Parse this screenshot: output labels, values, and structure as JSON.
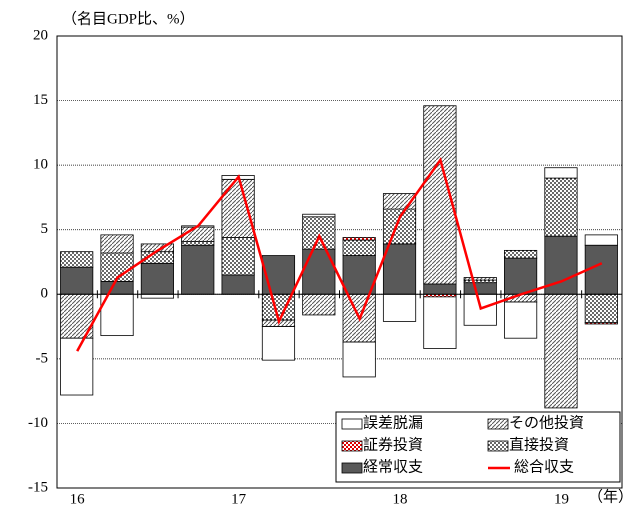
{
  "chart_data": {
    "type": "stacked_bar_line",
    "y_label": "（名目GDP比、%）",
    "x_unit": "（年）",
    "categories": [
      "16",
      null,
      null,
      null,
      "17",
      null,
      null,
      null,
      "18",
      null,
      null,
      null,
      "19",
      null
    ],
    "ylim": [
      -15,
      20
    ],
    "yticks": [
      -15,
      -10,
      -5,
      0,
      5,
      10,
      15,
      20
    ],
    "grid": true,
    "series": [
      {
        "name": "経常収支",
        "color": "#595959",
        "pattern": "solid",
        "values": [
          2.1,
          1.0,
          2.4,
          3.8,
          1.5,
          3.0,
          3.5,
          3.0,
          3.9,
          0.8,
          0.9,
          2.8,
          4.5,
          3.8
        ]
      },
      {
        "name": "直接投資",
        "color": "#000000",
        "pattern": "dots",
        "values": [
          1.2,
          2.2,
          0.9,
          0.3,
          2.9,
          -2.0,
          2.5,
          1.2,
          2.7,
          0,
          0.2,
          0.6,
          4.5,
          -2.2
        ]
      },
      {
        "name": "証券投資",
        "color": "#e00000",
        "pattern": "check",
        "values": [
          0,
          0,
          0,
          0,
          0,
          0,
          0,
          0.2,
          0,
          -0.2,
          0,
          0,
          0,
          -0.1
        ]
      },
      {
        "name": "その他投資",
        "color": "#000000",
        "pattern": "hatch",
        "values": [
          -3.4,
          1.4,
          0.6,
          1.1,
          4.5,
          -0.5,
          -1.6,
          -3.7,
          1.2,
          13.8,
          0.2,
          -0.6,
          -8.8,
          0
        ]
      },
      {
        "name": "誤差脱漏",
        "color": "#ffffff",
        "pattern": "blank",
        "values": [
          -4.4,
          -3.2,
          -0.3,
          0.1,
          0.3,
          -2.6,
          0.2,
          -2.7,
          -2.1,
          -4.0,
          -2.4,
          -2.8,
          0.8,
          0.8
        ]
      },
      {
        "name": "総合収支",
        "color": "#ff0000",
        "type": "line",
        "values": [
          -4.4,
          1.3,
          3.4,
          5.3,
          9.1,
          -2.1,
          4.5,
          -1.9,
          6.0,
          10.4,
          -1.1,
          0.0,
          1.0,
          2.4
        ]
      }
    ]
  }
}
